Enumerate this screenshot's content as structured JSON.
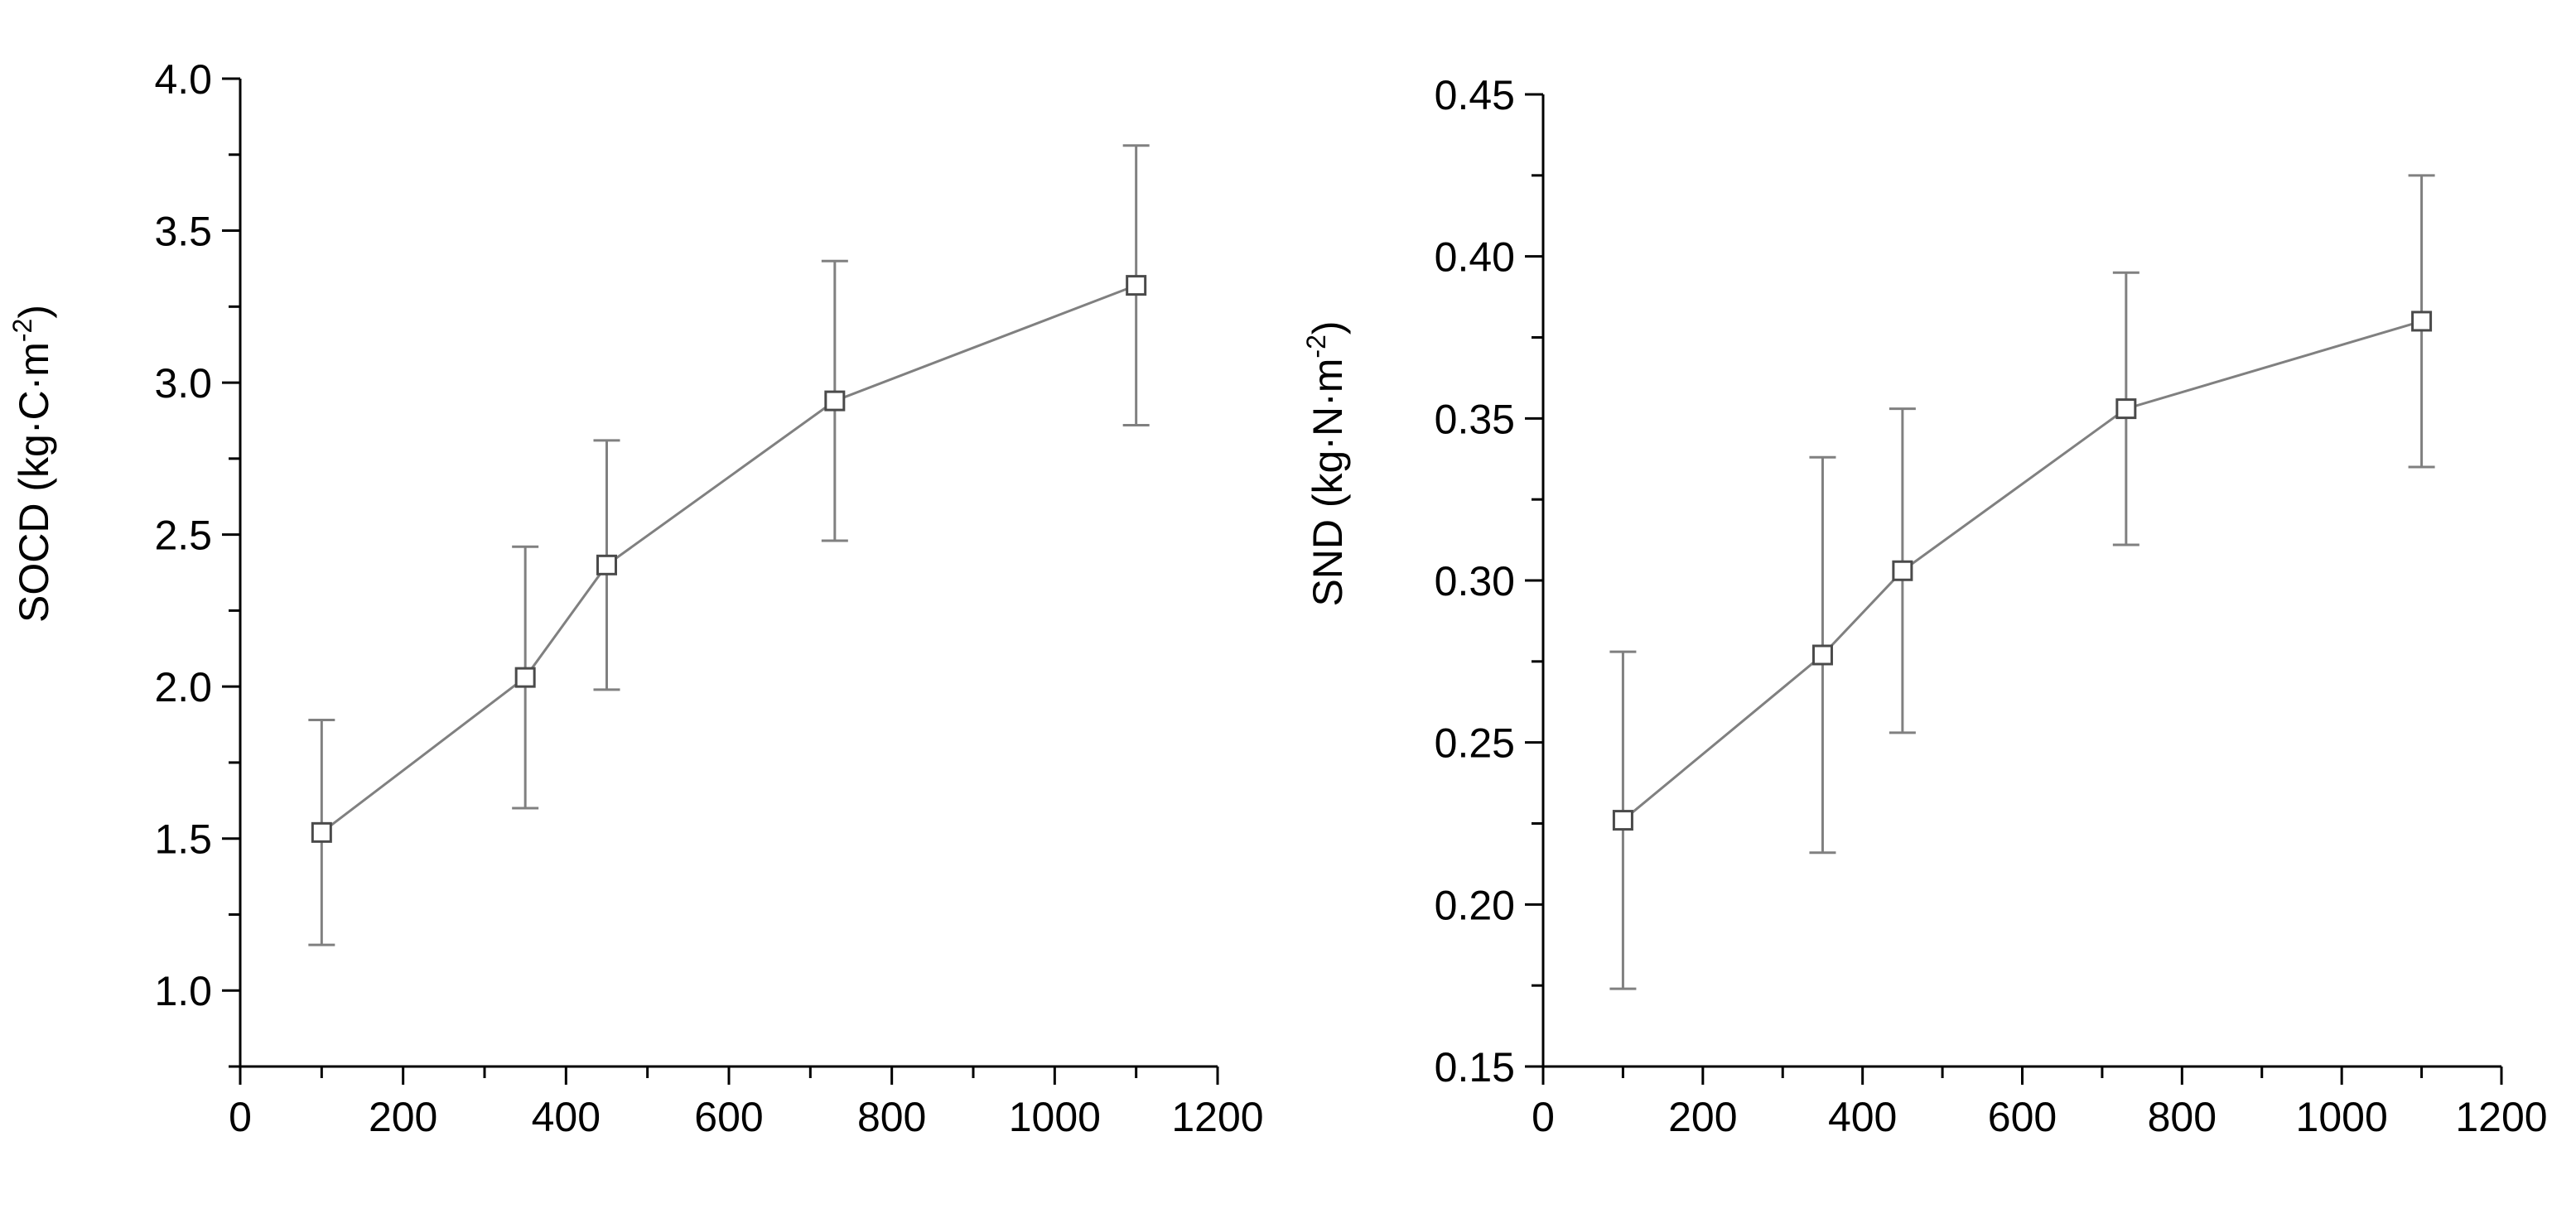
{
  "chart_data": [
    {
      "type": "line",
      "title": "",
      "xlabel": "",
      "ylabel": "SOCD (kg·C·m",
      "ylabel_sup": "-2",
      "ylabel_close": ")",
      "xlim": [
        0,
        1200
      ],
      "ylim": [
        0.75,
        4.0
      ],
      "x_ticks": [
        "0",
        "200",
        "400",
        "600",
        "800",
        "1000",
        "1200"
      ],
      "y_ticks": [
        "1.0",
        "1.5",
        "2.0",
        "2.5",
        "3.0",
        "3.5",
        "4.0"
      ],
      "grid": false,
      "marker": "open-square",
      "color": "#808080",
      "series": [
        {
          "x": [
            100,
            350,
            450,
            730,
            1100
          ],
          "y": [
            1.52,
            2.03,
            2.4,
            2.94,
            3.32
          ],
          "error": [
            0.37,
            0.43,
            0.41,
            0.46,
            0.46
          ]
        }
      ]
    },
    {
      "type": "line",
      "title": "",
      "xlabel": "",
      "ylabel": "SND (kg·N·m",
      "ylabel_sup": "-2",
      "ylabel_close": ")",
      "xlim": [
        0,
        1200
      ],
      "ylim": [
        0.15,
        0.45
      ],
      "x_ticks": [
        "0",
        "200",
        "400",
        "600",
        "800",
        "1000",
        "1200"
      ],
      "y_ticks": [
        "0.15",
        "0.20",
        "0.25",
        "0.30",
        "0.35",
        "0.40",
        "0.45"
      ],
      "grid": false,
      "marker": "open-square",
      "color": "#808080",
      "series": [
        {
          "x": [
            100,
            350,
            450,
            730,
            1100
          ],
          "y": [
            0.226,
            0.277,
            0.303,
            0.353,
            0.38
          ],
          "error": [
            0.052,
            0.061,
            0.05,
            0.042,
            0.045
          ]
        }
      ]
    }
  ]
}
